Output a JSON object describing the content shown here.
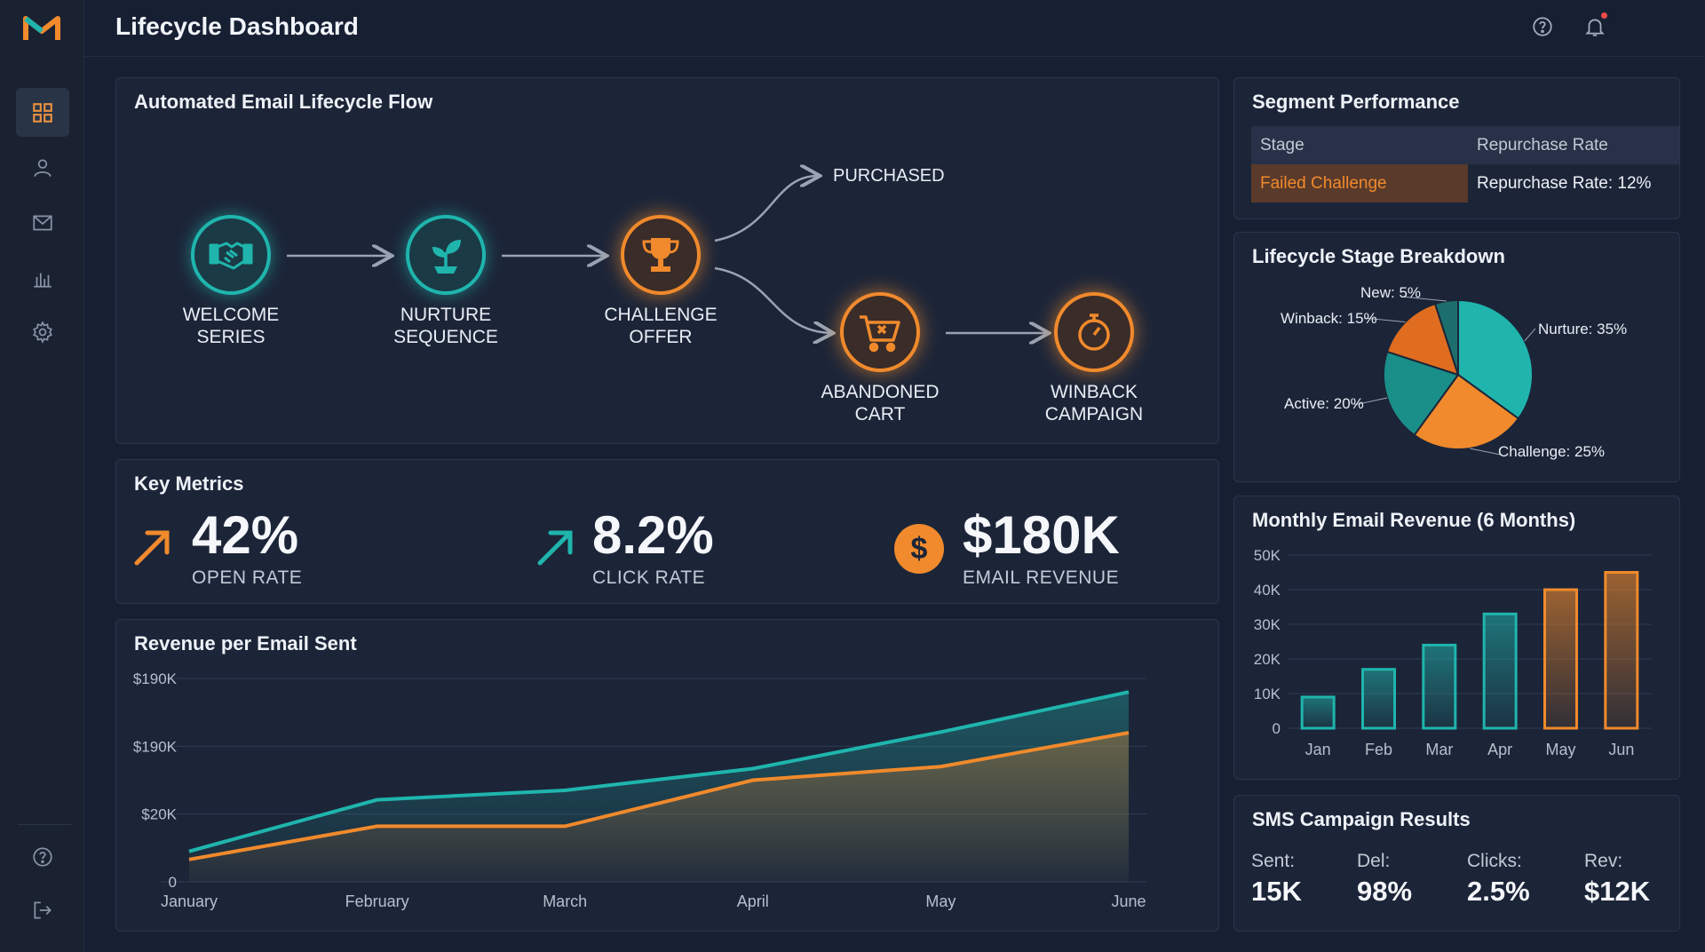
{
  "header": {
    "title": "Lifecycle Dashboard"
  },
  "icons": {
    "logo": "m-logo",
    "nav": [
      "dashboard-grid-icon",
      "user-icon",
      "mail-icon",
      "bar-chart-icon",
      "settings-gear-icon"
    ],
    "bottom_nav": [
      "help-icon",
      "logout-icon"
    ],
    "top": [
      "help-icon",
      "bell-icon",
      "avatar"
    ]
  },
  "colors": {
    "teal": "#1fb5ad",
    "orange": "#f08a2c",
    "background": "#172033",
    "card": "#1c2538"
  },
  "flow": {
    "title": "Automated Email Lifecycle Flow",
    "nodes": [
      {
        "line1": "WELCOME",
        "line2": "SERIES",
        "icon": "handshake-icon"
      },
      {
        "line1": "NURTURE",
        "line2": "SEQUENCE",
        "icon": "sprout-icon"
      },
      {
        "line1": "CHALLENGE",
        "line2": "OFFER",
        "icon": "trophy-icon"
      },
      {
        "line1": "ABANDONED",
        "line2": "CART",
        "icon": "cart-icon"
      },
      {
        "line1": "WINBACK",
        "line2": "CAMPAIGN",
        "icon": "stopwatch-icon"
      }
    ],
    "purchased": "PURCHASED"
  },
  "metrics": {
    "title": "Key Metrics",
    "items": [
      {
        "value": "42%",
        "label": "OPEN RATE",
        "icon": "arrow-up-right-icon"
      },
      {
        "value": "8.2%",
        "label": "CLICK RATE",
        "icon": "arrow-up-right-icon"
      },
      {
        "value": "$180K",
        "label": "EMAIL REVENUE",
        "icon": "dollar-icon"
      }
    ]
  },
  "segment": {
    "title": "Segment Performance",
    "headers": [
      "Stage",
      "Repurchase Rate"
    ],
    "rows": [
      [
        "Failed Challenge",
        "Repurchase Rate: 12%"
      ]
    ]
  },
  "sms": {
    "title": "SMS Campaign Results",
    "items": [
      {
        "label": "Sent:",
        "value": "15K"
      },
      {
        "label": "Del:",
        "value": "98%"
      },
      {
        "label": "Clicks:",
        "value": "2.5%"
      },
      {
        "label": "Rev:",
        "value": "$12K"
      }
    ]
  },
  "chart_data": [
    {
      "type": "pie",
      "title": "Lifecycle Stage Breakdown",
      "slices": [
        {
          "label": "Nurture: 35%",
          "value": 35,
          "color": "#1fb5ad"
        },
        {
          "label": "Challenge: 25%",
          "value": 25,
          "color": "#f08a2c"
        },
        {
          "label": "Active: 20%",
          "value": 20,
          "color": "#1a8f89"
        },
        {
          "label": "Winback: 15%",
          "value": 15,
          "color": "#e06d1f"
        },
        {
          "label": "New: 5%",
          "value": 5,
          "color": "#1c6f6c"
        }
      ]
    },
    {
      "type": "bar",
      "title": "Monthly Email Revenue (6 Months)",
      "categories": [
        "Jan",
        "Feb",
        "Mar",
        "Apr",
        "May",
        "Jun"
      ],
      "values": [
        9000,
        17000,
        24000,
        33000,
        40000,
        45000
      ],
      "colors": [
        "#1fb5ad",
        "#1fb5ad",
        "#1fb5ad",
        "#1fb5ad",
        "#f08a2c",
        "#f08a2c"
      ],
      "yticks": [
        "0",
        "10K",
        "20K",
        "30K",
        "40K",
        "50K"
      ],
      "ylim": [
        0,
        50000
      ],
      "grid": true
    },
    {
      "type": "area",
      "title": "Revenue per Email Sent",
      "categories": [
        "January",
        "February",
        "March",
        "April",
        "May",
        "June"
      ],
      "yticks": [
        "0",
        "$20K",
        "$190K",
        "$190K"
      ],
      "ylim": [
        0,
        3
      ],
      "series": [
        {
          "values": [
            0.45,
            1.21,
            1.35,
            1.67,
            2.21,
            2.8
          ],
          "color": "#1fb5ad"
        },
        {
          "values": [
            0.33,
            0.82,
            0.82,
            1.5,
            1.7,
            2.2
          ],
          "color": "#f08a2c"
        }
      ],
      "grid": true
    }
  ]
}
